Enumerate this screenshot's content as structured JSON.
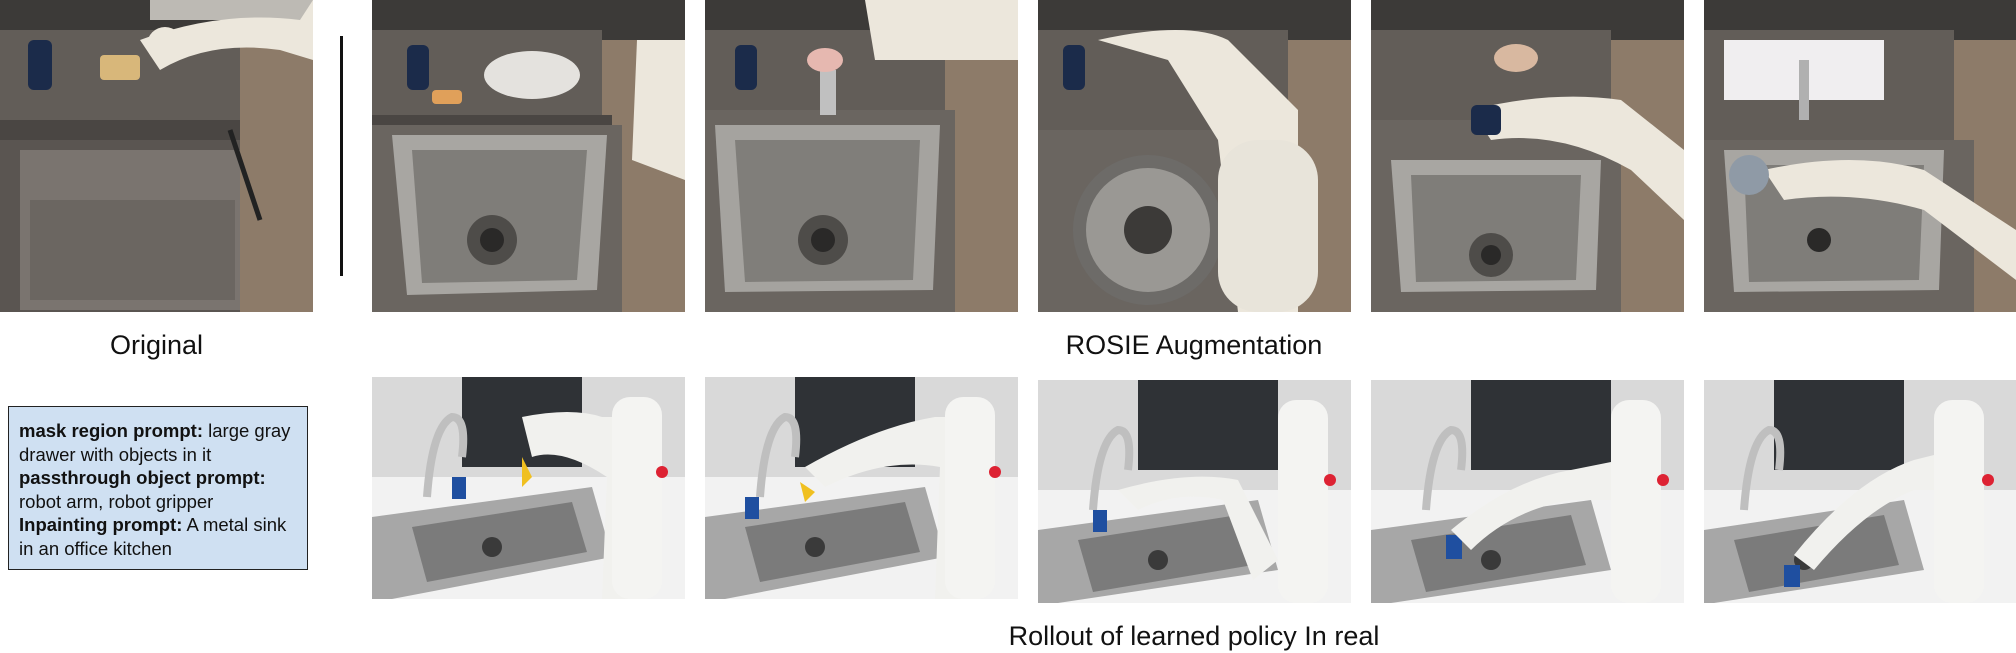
{
  "captions": {
    "original": "Original",
    "augmentation": "ROSIE  Augmentation",
    "rollout": "Rollout of learned policy In real"
  },
  "prompt_box": {
    "mask_label": "mask region prompt:",
    "mask_text": " large gray drawer with objects in it",
    "passthrough_label": "passthrough object prompt:",
    "passthrough_text": " robot arm, robot gripper",
    "inpaint_label": "Inpainting prompt:",
    "inpaint_text": " A metal sink in an office kitchen"
  },
  "images": {
    "original": "original-drawer-scene",
    "augmented": [
      "rosie-sink-1",
      "rosie-sink-2",
      "rosie-sink-3",
      "rosie-sink-4",
      "rosie-sink-5"
    ],
    "rollout": [
      "rollout-frame-1",
      "rollout-frame-2",
      "rollout-frame-3",
      "rollout-frame-4",
      "rollout-frame-5"
    ]
  },
  "colors": {
    "prompt_box_bg": "#cfe0f2",
    "floor": "#8a7a68",
    "counter": "#5f5a55",
    "steel": "#9a9894",
    "wall_tile": "#dcdcdc",
    "robot": "#eae7df"
  }
}
